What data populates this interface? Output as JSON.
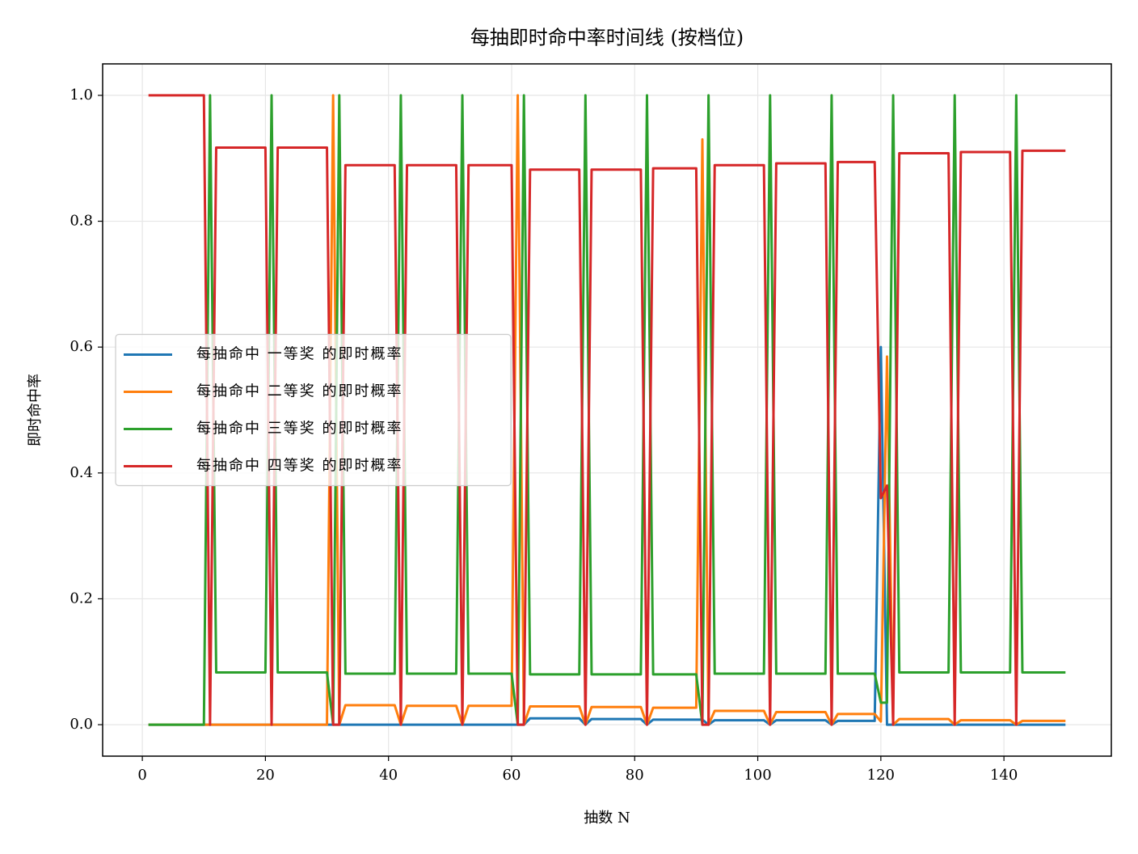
{
  "chart_data": {
    "type": "line",
    "title": "每抽即时命中率时间线 (按档位)",
    "xlabel": "抽数 N",
    "ylabel": "即时命中率",
    "x": [
      1,
      2,
      3,
      4,
      5,
      6,
      7,
      8,
      9,
      10,
      11,
      12,
      13,
      14,
      15,
      16,
      17,
      18,
      19,
      20,
      21,
      22,
      23,
      24,
      25,
      26,
      27,
      28,
      29,
      30,
      31,
      32,
      33,
      34,
      35,
      36,
      37,
      38,
      39,
      40,
      41,
      42,
      43,
      44,
      45,
      46,
      47,
      48,
      49,
      50,
      51,
      52,
      53,
      54,
      55,
      56,
      57,
      58,
      59,
      60,
      61,
      62,
      63,
      64,
      65,
      66,
      67,
      68,
      69,
      70,
      71,
      72,
      73,
      74,
      75,
      76,
      77,
      78,
      79,
      80,
      81,
      82,
      83,
      84,
      85,
      86,
      87,
      88,
      89,
      90,
      91,
      92,
      93,
      94,
      95,
      96,
      97,
      98,
      99,
      100,
      101,
      102,
      103,
      104,
      105,
      106,
      107,
      108,
      109,
      110,
      111,
      112,
      113,
      114,
      115,
      116,
      117,
      118,
      119,
      120,
      121,
      122,
      123,
      124,
      125,
      126,
      127,
      128,
      129,
      130,
      131,
      132,
      133,
      134,
      135,
      136,
      137,
      138,
      139,
      140,
      141,
      142,
      143,
      144,
      145,
      146,
      147,
      148,
      149,
      150
    ],
    "series": [
      {
        "name": "每抽命中 一等奖 的即时概率",
        "color": "#1f77b4",
        "values": [
          0,
          0,
          0,
          0,
          0,
          0,
          0,
          0,
          0,
          0,
          0,
          0,
          0,
          0,
          0,
          0,
          0,
          0,
          0,
          0,
          0,
          0,
          0,
          0,
          0,
          0,
          0,
          0,
          0,
          0,
          0,
          0,
          0,
          0,
          0,
          0,
          0,
          0,
          0,
          0,
          0,
          0,
          0,
          0,
          0,
          0,
          0,
          0,
          0,
          0,
          0,
          0,
          0,
          0,
          0,
          0,
          0,
          0,
          0,
          0,
          0,
          0,
          0.01,
          0.01,
          0.01,
          0.01,
          0.01,
          0.01,
          0.01,
          0.01,
          0.01,
          0,
          0.009,
          0.009,
          0.009,
          0.009,
          0.009,
          0.009,
          0.009,
          0.009,
          0.009,
          0,
          0.008,
          0.008,
          0.008,
          0.008,
          0.008,
          0.008,
          0.008,
          0.008,
          0.008,
          0,
          0.007,
          0.007,
          0.007,
          0.007,
          0.007,
          0.007,
          0.007,
          0.007,
          0.007,
          0,
          0.007,
          0.007,
          0.007,
          0.007,
          0.007,
          0.007,
          0.007,
          0.007,
          0.007,
          0,
          0.006,
          0.006,
          0.006,
          0.006,
          0.006,
          0.006,
          0.006,
          0.6,
          0,
          0,
          0,
          0,
          0,
          0,
          0,
          0,
          0,
          0,
          0,
          0,
          0,
          0,
          0,
          0,
          0,
          0,
          0,
          0,
          0,
          0,
          0,
          0,
          0,
          0,
          0,
          0,
          0,
          0
        ]
      },
      {
        "name": "每抽命中 二等奖 的即时概率",
        "color": "#ff7f0e",
        "values": [
          0,
          0,
          0,
          0,
          0,
          0,
          0,
          0,
          0,
          0,
          0,
          0,
          0,
          0,
          0,
          0,
          0,
          0,
          0,
          0,
          0,
          0,
          0,
          0,
          0,
          0,
          0,
          0,
          0,
          0,
          1,
          0,
          0.031,
          0.031,
          0.031,
          0.031,
          0.031,
          0.031,
          0.031,
          0.031,
          0.031,
          0,
          0.03,
          0.03,
          0.03,
          0.03,
          0.03,
          0.03,
          0.03,
          0.03,
          0.03,
          0,
          0.03,
          0.03,
          0.03,
          0.03,
          0.03,
          0.03,
          0.03,
          0.03,
          1,
          0,
          0.029,
          0.029,
          0.029,
          0.029,
          0.029,
          0.029,
          0.029,
          0.029,
          0.029,
          0,
          0.028,
          0.028,
          0.028,
          0.028,
          0.028,
          0.028,
          0.028,
          0.028,
          0.028,
          0,
          0.027,
          0.027,
          0.027,
          0.027,
          0.027,
          0.027,
          0.027,
          0.027,
          0.93,
          0,
          0.022,
          0.022,
          0.022,
          0.022,
          0.022,
          0.022,
          0.022,
          0.022,
          0.022,
          0,
          0.02,
          0.02,
          0.02,
          0.02,
          0.02,
          0.02,
          0.02,
          0.02,
          0.02,
          0,
          0.017,
          0.017,
          0.017,
          0.017,
          0.017,
          0.017,
          0.017,
          0.005,
          0.585,
          0,
          0.009,
          0.009,
          0.009,
          0.009,
          0.009,
          0.009,
          0.009,
          0.009,
          0.009,
          0,
          0.007,
          0.007,
          0.007,
          0.007,
          0.007,
          0.007,
          0.007,
          0.007,
          0.007,
          0,
          0.006,
          0.006,
          0.006,
          0.006,
          0.006,
          0.006,
          0.006,
          0.006
        ]
      },
      {
        "name": "每抽命中 三等奖 的即时概率",
        "color": "#2ca02c",
        "values": [
          0,
          0,
          0,
          0,
          0,
          0,
          0,
          0,
          0,
          0,
          1,
          0.083,
          0.083,
          0.083,
          0.083,
          0.083,
          0.083,
          0.083,
          0.083,
          0.083,
          1,
          0.083,
          0.083,
          0.083,
          0.083,
          0.083,
          0.083,
          0.083,
          0.083,
          0.083,
          0,
          1,
          0.081,
          0.081,
          0.081,
          0.081,
          0.081,
          0.081,
          0.081,
          0.081,
          0.081,
          1,
          0.081,
          0.081,
          0.081,
          0.081,
          0.081,
          0.081,
          0.081,
          0.081,
          0.081,
          1,
          0.081,
          0.081,
          0.081,
          0.081,
          0.081,
          0.081,
          0.081,
          0.081,
          0,
          1,
          0.08,
          0.08,
          0.08,
          0.08,
          0.08,
          0.08,
          0.08,
          0.08,
          0.08,
          1,
          0.08,
          0.08,
          0.08,
          0.08,
          0.08,
          0.08,
          0.08,
          0.08,
          0.08,
          1,
          0.08,
          0.08,
          0.08,
          0.08,
          0.08,
          0.08,
          0.08,
          0.08,
          0,
          1,
          0.081,
          0.081,
          0.081,
          0.081,
          0.081,
          0.081,
          0.081,
          0.081,
          0.081,
          1,
          0.081,
          0.081,
          0.081,
          0.081,
          0.081,
          0.081,
          0.081,
          0.081,
          0.081,
          1,
          0.081,
          0.081,
          0.081,
          0.081,
          0.081,
          0.081,
          0.081,
          0.035,
          0.035,
          1,
          0.083,
          0.083,
          0.083,
          0.083,
          0.083,
          0.083,
          0.083,
          0.083,
          0.083,
          1,
          0.083,
          0.083,
          0.083,
          0.083,
          0.083,
          0.083,
          0.083,
          0.083,
          0.083,
          1,
          0.083,
          0.083,
          0.083,
          0.083,
          0.083,
          0.083,
          0.083,
          0.083
        ]
      },
      {
        "name": "每抽命中 四等奖 的即时概率",
        "color": "#d62728",
        "values": [
          1,
          1,
          1,
          1,
          1,
          1,
          1,
          1,
          1,
          1,
          0,
          0.917,
          0.917,
          0.917,
          0.917,
          0.917,
          0.917,
          0.917,
          0.917,
          0.917,
          0,
          0.917,
          0.917,
          0.917,
          0.917,
          0.917,
          0.917,
          0.917,
          0.917,
          0.917,
          0,
          0,
          0.889,
          0.889,
          0.889,
          0.889,
          0.889,
          0.889,
          0.889,
          0.889,
          0.889,
          0,
          0.889,
          0.889,
          0.889,
          0.889,
          0.889,
          0.889,
          0.889,
          0.889,
          0.889,
          0,
          0.889,
          0.889,
          0.889,
          0.889,
          0.889,
          0.889,
          0.889,
          0.889,
          0,
          0,
          0.882,
          0.882,
          0.882,
          0.882,
          0.882,
          0.882,
          0.882,
          0.882,
          0.882,
          0,
          0.882,
          0.882,
          0.882,
          0.882,
          0.882,
          0.882,
          0.882,
          0.882,
          0.882,
          0,
          0.884,
          0.884,
          0.884,
          0.884,
          0.884,
          0.884,
          0.884,
          0.884,
          0,
          0,
          0.889,
          0.889,
          0.889,
          0.889,
          0.889,
          0.889,
          0.889,
          0.889,
          0.889,
          0,
          0.892,
          0.892,
          0.892,
          0.892,
          0.892,
          0.892,
          0.892,
          0.892,
          0.892,
          0,
          0.894,
          0.894,
          0.894,
          0.894,
          0.894,
          0.894,
          0.894,
          0.36,
          0.38,
          0,
          0.908,
          0.908,
          0.908,
          0.908,
          0.908,
          0.908,
          0.908,
          0.908,
          0.908,
          0,
          0.91,
          0.91,
          0.91,
          0.91,
          0.91,
          0.91,
          0.91,
          0.91,
          0.91,
          0,
          0.912,
          0.912,
          0.912,
          0.912,
          0.912,
          0.912,
          0.912,
          0.912
        ]
      }
    ],
    "xlim": [
      -6.45,
      157.45
    ],
    "xticks": [
      0,
      20,
      40,
      60,
      80,
      100,
      120,
      140
    ],
    "ylim": [
      -0.05,
      1.05
    ],
    "yticks": [
      {
        "value": 0,
        "label": "0.0"
      },
      0.2,
      0.4,
      0.6,
      0.8,
      {
        "value": 1,
        "label": "1.0"
      }
    ],
    "grid": true,
    "legend": "center left"
  }
}
